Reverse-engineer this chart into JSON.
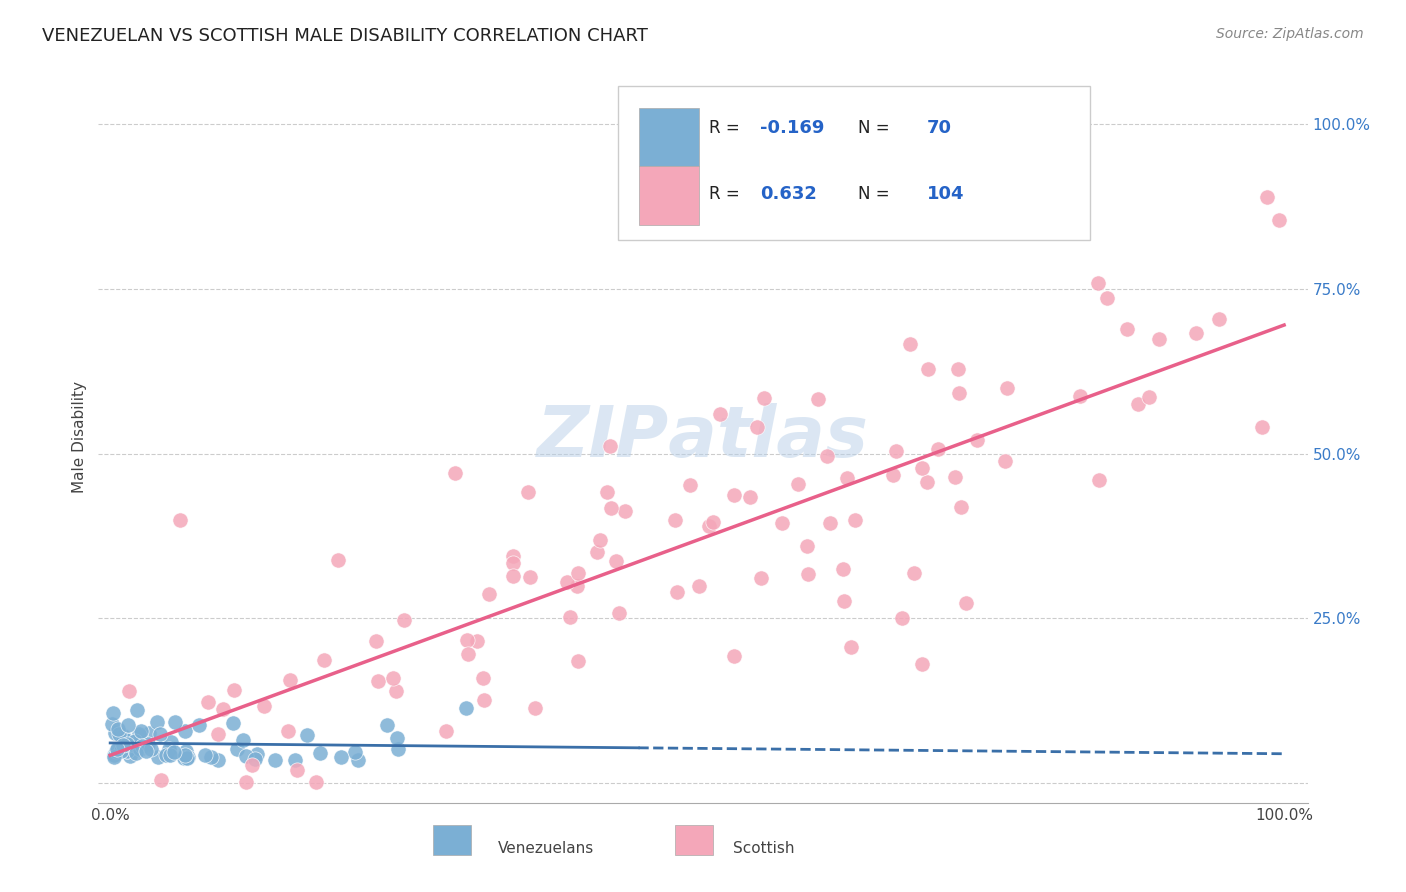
{
  "title": "VENEZUELAN VS SCOTTISH MALE DISABILITY CORRELATION CHART",
  "source": "Source: ZipAtlas.com",
  "ylabel": "Male Disability",
  "blue_color": "#7bafd4",
  "pink_color": "#f4a7b9",
  "blue_line_color": "#3a6fa8",
  "pink_line_color": "#e8608a",
  "watermark_color": "#b8cfe8",
  "blue_R": -0.169,
  "blue_N": 70,
  "pink_R": 0.632,
  "pink_N": 104,
  "blue_seed": 42,
  "pink_seed": 123,
  "title_fontsize": 13,
  "label_color_blue": "#2563c7",
  "grid_color": "#cccccc",
  "background_color": "#ffffff",
  "right_label_color": "#3a7bc8"
}
